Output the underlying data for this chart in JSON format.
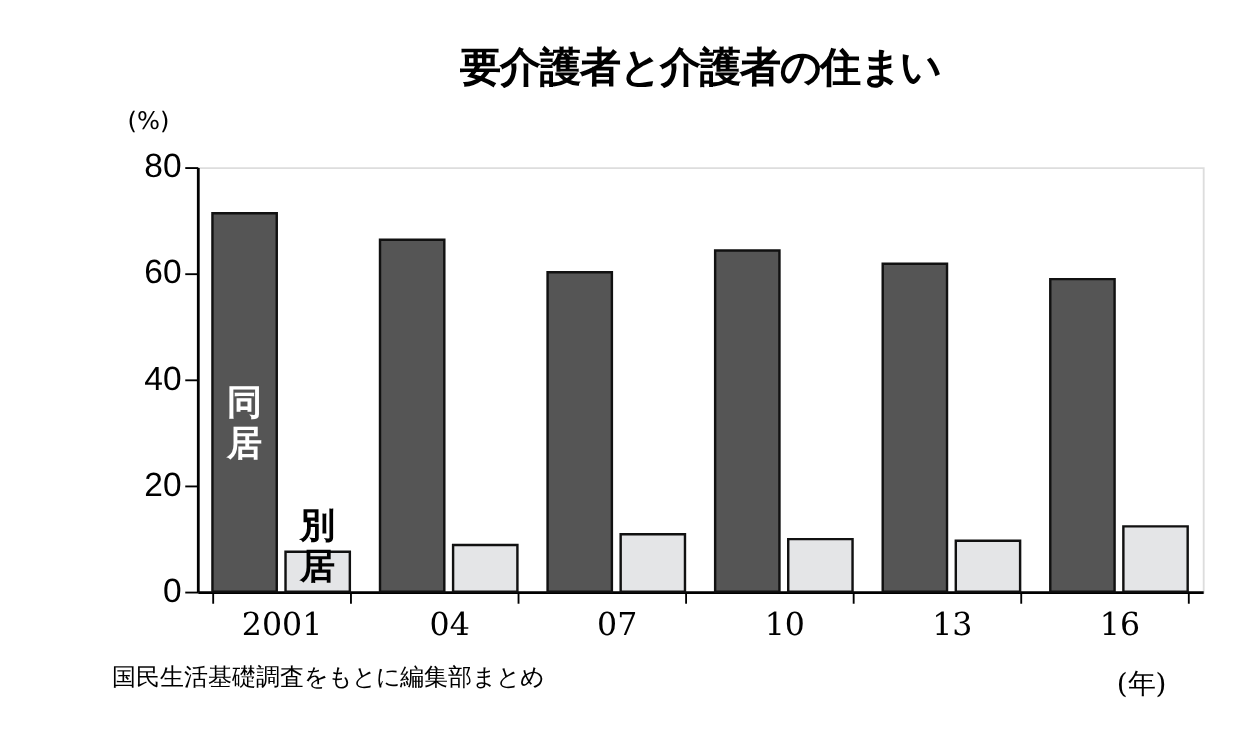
{
  "chart_data": {
    "type": "bar",
    "title": "要介護者と介護者の住まい",
    "ylabel": "(%)",
    "xlabel": "(年)",
    "categories": [
      "2001",
      "04",
      "07",
      "10",
      "13",
      "16"
    ],
    "series": [
      {
        "name": "同居",
        "color": "#555555",
        "values": [
          71.3,
          66.3,
          60.2,
          64.3,
          61.8,
          58.9
        ]
      },
      {
        "name": "別居",
        "color": "#e4e5e7",
        "values": [
          7.5,
          8.8,
          10.8,
          9.9,
          9.6,
          12.3
        ]
      }
    ],
    "ylim": [
      0,
      80
    ],
    "yticks": [
      0,
      20,
      40,
      60,
      80
    ],
    "grid": false,
    "legend": false,
    "annotations": [
      "国民生活基礎調査をもとに編集部まとめ"
    ]
  }
}
